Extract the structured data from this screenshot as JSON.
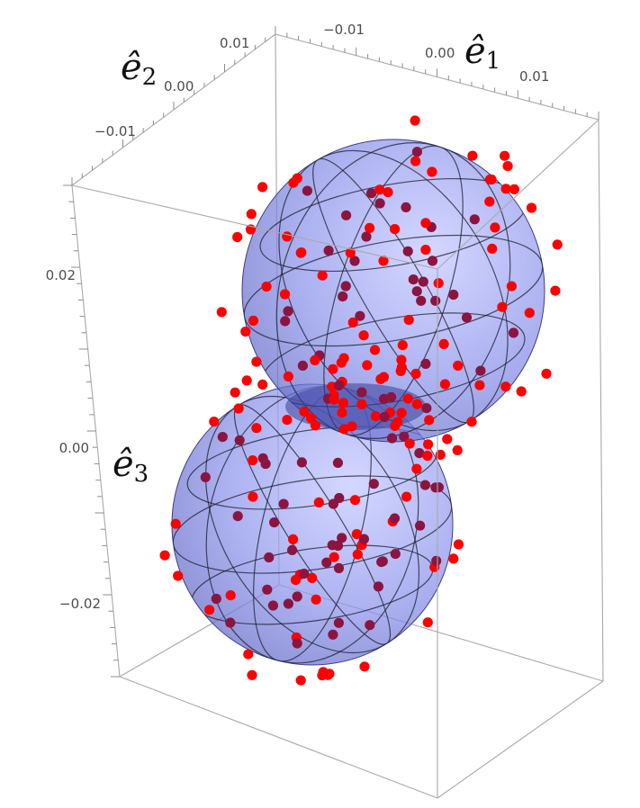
{
  "chart_data": {
    "type": "scatter3d",
    "axes": {
      "x": {
        "label": "ê",
        "sub": "1",
        "ticks": [
          "−0.01",
          "0.00",
          "0.01"
        ]
      },
      "y": {
        "label": "ê",
        "sub": "2",
        "ticks": [
          "0.01",
          "0.00",
          "−0.01"
        ]
      },
      "z": {
        "label": "ê",
        "sub": "3",
        "ticks": [
          "0.02",
          "0.00",
          "−0.02"
        ]
      }
    },
    "surfaces": [
      {
        "name": "",
        "shape": "sphere",
        "color": "#7f86e6",
        "opacity": 0.72
      },
      {
        "name": "",
        "shape": "sphere",
        "color": "#7f86e6",
        "opacity": 0.72
      }
    ],
    "points": {
      "color_front": "#ff0000",
      "color_behind": "#8b1540",
      "count": 190
    },
    "boxed": true
  }
}
